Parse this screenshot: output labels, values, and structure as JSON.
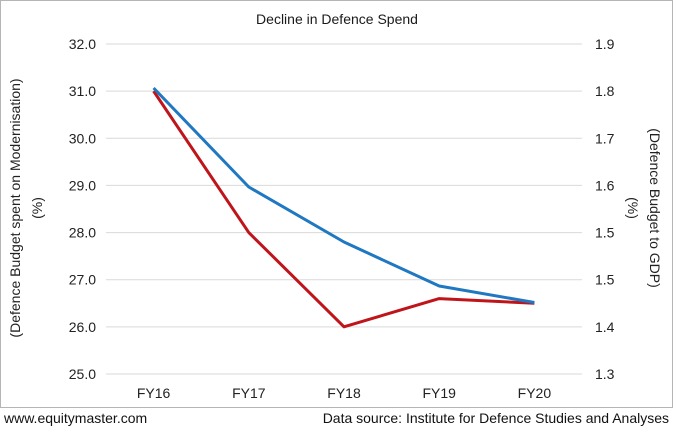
{
  "chart_data": {
    "type": "line",
    "title": "Decline in Defence Spend",
    "categories": [
      "FY16",
      "FY17",
      "FY18",
      "FY19",
      "FY20"
    ],
    "ylabel_left": [
      "(Defence Budget spent on Modernisation)",
      "(%)"
    ],
    "ylabel_right": [
      "(Defence Budget to GDP)",
      "(%)"
    ],
    "ylim_left": [
      25.0,
      32.0
    ],
    "ylim_right": [
      1.3,
      1.9
    ],
    "left_ticks": [
      "25.0",
      "26.0",
      "27.0",
      "28.0",
      "29.0",
      "30.0",
      "31.0",
      "32.0"
    ],
    "right_ticks": [
      "1.3",
      "1.4",
      "1.5",
      "1.5",
      "1.6",
      "1.7",
      "1.8",
      "1.9"
    ],
    "grid": true,
    "series": [
      {
        "axis": "left",
        "color": "#c0141b",
        "values": [
          31.0,
          28.0,
          26.0,
          26.6,
          26.5
        ]
      },
      {
        "axis": "right",
        "color": "#1f78c1",
        "values": [
          1.82,
          1.64,
          1.54,
          1.46,
          1.43
        ]
      }
    ]
  },
  "footer": {
    "source_site": "www.equitymaster.com",
    "data_source": "Data source: Institute for Defence Studies and Analyses"
  }
}
